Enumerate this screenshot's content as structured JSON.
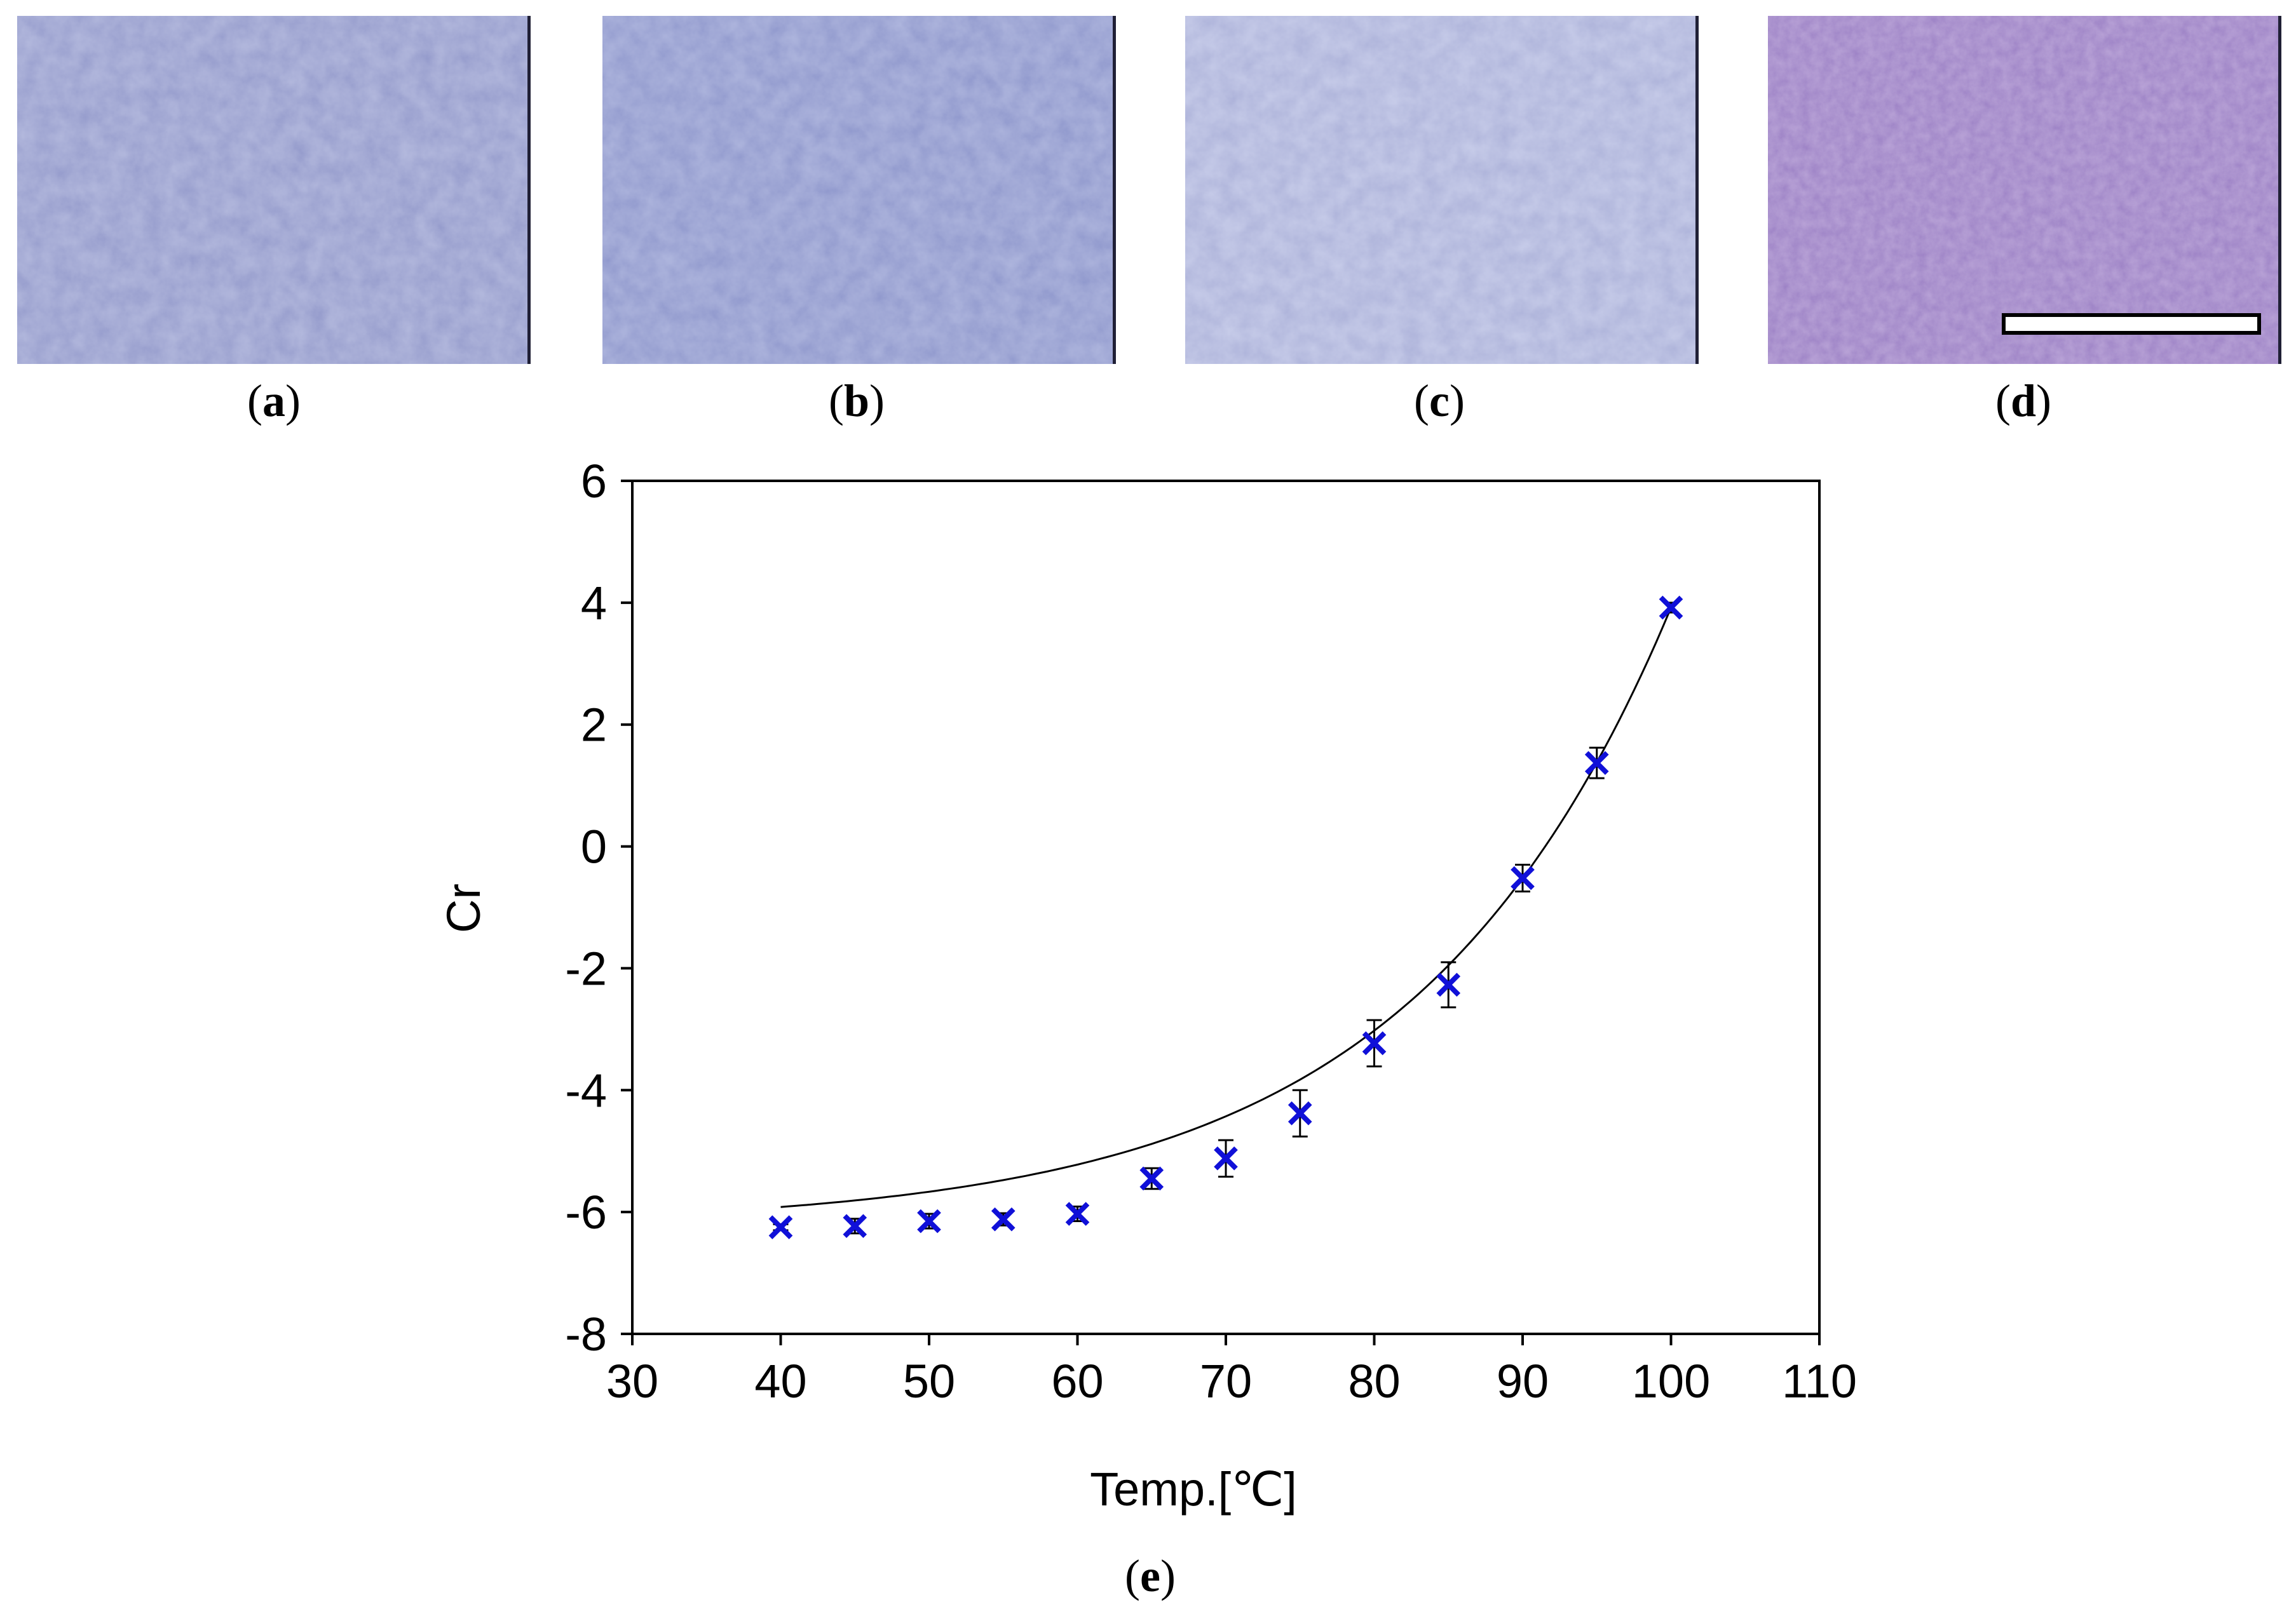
{
  "panels": [
    {
      "letter": "a",
      "color": "#8a93c8"
    },
    {
      "letter": "b",
      "color": "#8590c9"
    },
    {
      "letter": "c",
      "color": "#a2aad4"
    },
    {
      "letter": "d",
      "color": "#8e74bd"
    }
  ],
  "figure_label": "e",
  "chart_data": {
    "type": "scatter",
    "title": "",
    "xlabel": "Temp.[℃]",
    "ylabel": "Cr",
    "xlim": [
      30,
      110
    ],
    "ylim": [
      -8,
      6
    ],
    "xticks": [
      30,
      40,
      50,
      60,
      70,
      80,
      90,
      100,
      110
    ],
    "yticks": [
      6,
      4,
      2,
      0,
      -2,
      -4,
      -6,
      -8
    ],
    "grid": false,
    "marker": "x",
    "marker_color": "#1010d8",
    "fit_line_color": "#000000",
    "series": [
      {
        "name": "Cr",
        "x": [
          40,
          45,
          50,
          55,
          60,
          65,
          70,
          75,
          80,
          85,
          90,
          95,
          100
        ],
        "y": [
          -6.25,
          -6.23,
          -6.15,
          -6.12,
          -6.03,
          -5.45,
          -5.12,
          -4.38,
          -3.23,
          -2.27,
          -0.52,
          1.37,
          3.92
        ],
        "error": [
          0.05,
          0.12,
          0.12,
          0.1,
          0.12,
          0.17,
          0.3,
          0.38,
          0.38,
          0.37,
          0.22,
          0.25,
          0.08
        ]
      }
    ],
    "fit_curve": {
      "a": -6.24,
      "b": 0.0575,
      "x0": 40
    }
  }
}
